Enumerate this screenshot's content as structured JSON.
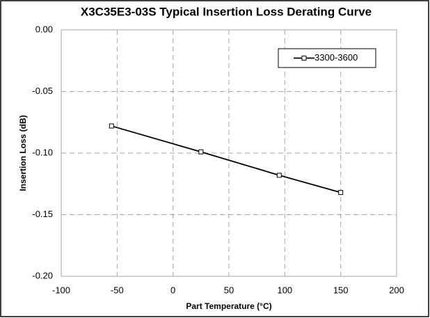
{
  "chart_data": {
    "type": "line",
    "title": "X3C35E3-03S Typical Insertion Loss Derating Curve",
    "x_label": "Part Temperature (°C)",
    "y_label": "Insertion Loss (dB)",
    "x": [
      -55,
      25,
      95,
      150
    ],
    "series": [
      {
        "name": "3300-3600",
        "color": "#000000",
        "values": [
          -0.078,
          -0.099,
          -0.118,
          -0.132
        ]
      }
    ],
    "xlim": [
      -100,
      200
    ],
    "xticks": [
      -100,
      -50,
      0,
      50,
      100,
      150,
      200
    ],
    "ylim": [
      -0.2,
      0
    ],
    "yticks": [
      {
        "value": 0,
        "label": "0.00"
      },
      {
        "value": -0.05,
        "label": "-0.05"
      },
      {
        "value": -0.1,
        "label": "-0.10"
      },
      {
        "value": -0.15,
        "label": "-0.15"
      },
      {
        "value": -0.2,
        "label": "-0.20"
      }
    ],
    "grid": true,
    "legend": "top-right"
  }
}
